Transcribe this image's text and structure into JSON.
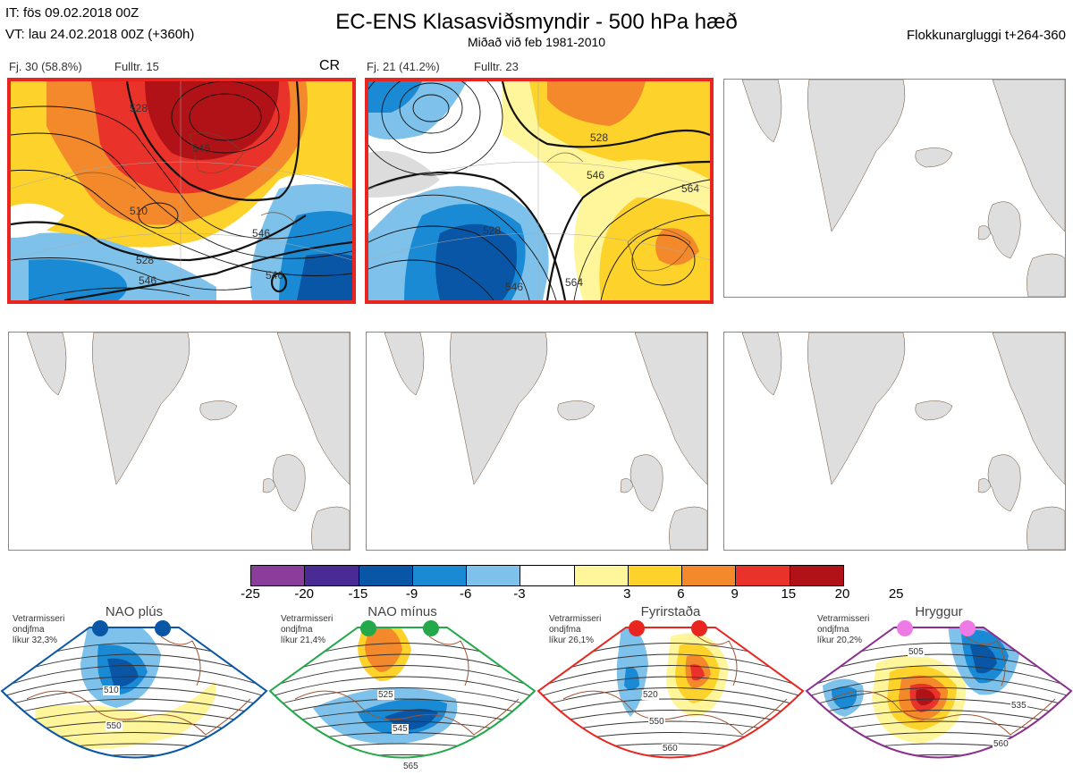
{
  "header": {
    "it_line": "IT: fös 09.02.2018 00Z",
    "vt_line": "VT: lau 24.02.2018 00Z  (+360h)",
    "title": "EC-ENS Klasasviðsmyndir - 500 hPa hæð",
    "subtitle": "Miðað við feb 1981-2010",
    "window": "Flokkunargluggi t+264-360"
  },
  "clusters": [
    {
      "label_count": "Fj. 30 (58.8%)",
      "label_rep": "Fulltr. 15",
      "extra_label": "CR",
      "selected": true,
      "contour_labels": [
        "528",
        "546",
        "510",
        "528",
        "546",
        "546",
        "546"
      ]
    },
    {
      "label_count": "Fj. 21 (41.2%)",
      "label_rep": "Fulltr. 23",
      "extra_label": "",
      "selected": true,
      "contour_labels": [
        "528",
        "546",
        "564",
        "528",
        "546",
        "564"
      ]
    },
    {
      "label_count": "",
      "label_rep": "",
      "extra_label": "",
      "selected": false,
      "contour_labels": []
    },
    {
      "label_count": "",
      "label_rep": "",
      "extra_label": "",
      "selected": false,
      "contour_labels": []
    },
    {
      "label_count": "",
      "label_rep": "",
      "extra_label": "",
      "selected": false,
      "contour_labels": []
    },
    {
      "label_count": "",
      "label_rep": "",
      "extra_label": "",
      "selected": false,
      "contour_labels": []
    }
  ],
  "colorbar": {
    "ticks": [
      "-25",
      "-20",
      "-15",
      "-9",
      "-6",
      "-3",
      "3",
      "6",
      "9",
      "15",
      "20",
      "25"
    ],
    "colors": [
      "#8b3d9b",
      "#4a2b96",
      "#0a56a6",
      "#1a8ad4",
      "#7ec2ec",
      "#ffffff",
      "#fff59a",
      "#fdd22a",
      "#f3892b",
      "#e8322a",
      "#b01217"
    ]
  },
  "regimes": [
    {
      "name": "NAO plús",
      "color": "#0a56a6",
      "desc_line1": "Vetrarmisseri",
      "desc_line2": "ondjfma",
      "desc_line3": "líkur 32,3%",
      "contour_labels": [
        "510",
        "550"
      ]
    },
    {
      "name": "NAO mínus",
      "color": "#23a84a",
      "desc_line1": "Vetrarmisseri",
      "desc_line2": "ondjfma",
      "desc_line3": "líkur 21,4%",
      "contour_labels": [
        "525",
        "545",
        "565"
      ]
    },
    {
      "name": "Fyrirstaða",
      "color": "#e8251f",
      "desc_line1": "Vetrarmisseri",
      "desc_line2": "ondjfma",
      "desc_line3": "líkur 26,1%",
      "contour_labels": [
        "520",
        "550",
        "560"
      ]
    },
    {
      "name": "Hryggur",
      "color": "#8b2f8f",
      "marker_color": "#ee7ae6",
      "desc_line1": "Vetrarmisseri",
      "desc_line2": "ondjfma",
      "desc_line3": "líkur 20,2%",
      "contour_labels": [
        "505",
        "535",
        "560"
      ]
    }
  ]
}
